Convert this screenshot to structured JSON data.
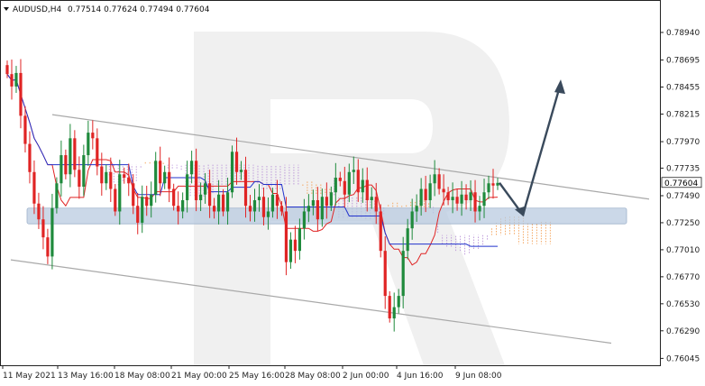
{
  "header": {
    "symbol": "AUDUSD,H4",
    "ohlc": "0.77514 0.77624 0.77494 0.77604"
  },
  "current_price_label": "0.77604",
  "colors": {
    "bull": "#1f8a3c",
    "bear": "#e02424",
    "tenkan": "#e02424",
    "kijun": "#2233cc",
    "cloud_orange": "#f39a4a",
    "cloud_purple": "#b58cd6",
    "channel": "#a9a9a9",
    "support_zone": "#b9cbe0",
    "arrow": "#3a4a5c",
    "watermark": "#e8e8e8"
  },
  "chart_data": {
    "type": "candlestick",
    "title": "AUDUSD,H4",
    "y_axis": {
      "ticks": [
        "0.78940",
        "0.78695",
        "0.78455",
        "0.78215",
        "0.77970",
        "0.77735",
        "0.77490",
        "0.77250",
        "0.77010",
        "0.76770",
        "0.76530",
        "0.76290",
        "0.76045"
      ],
      "range": [
        0.76,
        0.791
      ]
    },
    "x_axis": {
      "ticks": [
        "11 May 2021",
        "13 May 16:00",
        "18 May 08:00",
        "21 May 00:00",
        "25 May 16:00",
        "28 May 08:00",
        "2 Jun 00:00",
        "4 Jun 16:00",
        "9 Jun 08:00"
      ]
    },
    "last_close": 0.77604,
    "channel_upper": [
      [
        0.7821,
        0.7746
      ]
    ],
    "channel_lower": [
      [
        0.7692,
        0.7618
      ]
    ],
    "support_zone": [
      0.7724,
      0.7738
    ],
    "forecast_path": [
      0.77604,
      0.7732,
      0.7849
    ],
    "price_path": [
      0.7857,
      0.7846,
      0.7858,
      0.782,
      0.7795,
      0.777,
      0.7742,
      0.7728,
      0.7712,
      0.7695,
      0.7738,
      0.776,
      0.7785,
      0.7768,
      0.78,
      0.7772,
      0.7757,
      0.7785,
      0.7805,
      0.78,
      0.7775,
      0.776,
      0.777,
      0.7755,
      0.7735,
      0.7768,
      0.7765,
      0.776,
      0.774,
      0.7725,
      0.7748,
      0.774,
      0.775,
      0.778,
      0.776,
      0.777,
      0.7755,
      0.774,
      0.7735,
      0.7745,
      0.7768,
      0.778,
      0.7745,
      0.775,
      0.776,
      0.774,
      0.7735,
      0.775,
      0.7735,
      0.7752,
      0.7788,
      0.777,
      0.7772,
      0.774,
      0.7735,
      0.7745,
      0.7748,
      0.773,
      0.7735,
      0.775,
      0.774,
      0.7735,
      0.769,
      0.771,
      0.77,
      0.772,
      0.7735,
      0.774,
      0.7745,
      0.7728,
      0.7748,
      0.774,
      0.7752,
      0.7765,
      0.7762,
      0.775,
      0.777,
      0.7772,
      0.7752,
      0.7763,
      0.7745,
      0.7748,
      0.7735,
      0.77,
      0.766,
      0.764,
      0.765,
      0.766,
      0.77,
      0.772,
      0.7735,
      0.774,
      0.7755,
      0.7745,
      0.776,
      0.7768,
      0.7755,
      0.7752,
      0.7745,
      0.7748,
      0.7742,
      0.775,
      0.7745,
      0.7752,
      0.7735,
      0.774,
      0.7752,
      0.776,
      0.7758,
      0.77604
    ]
  }
}
